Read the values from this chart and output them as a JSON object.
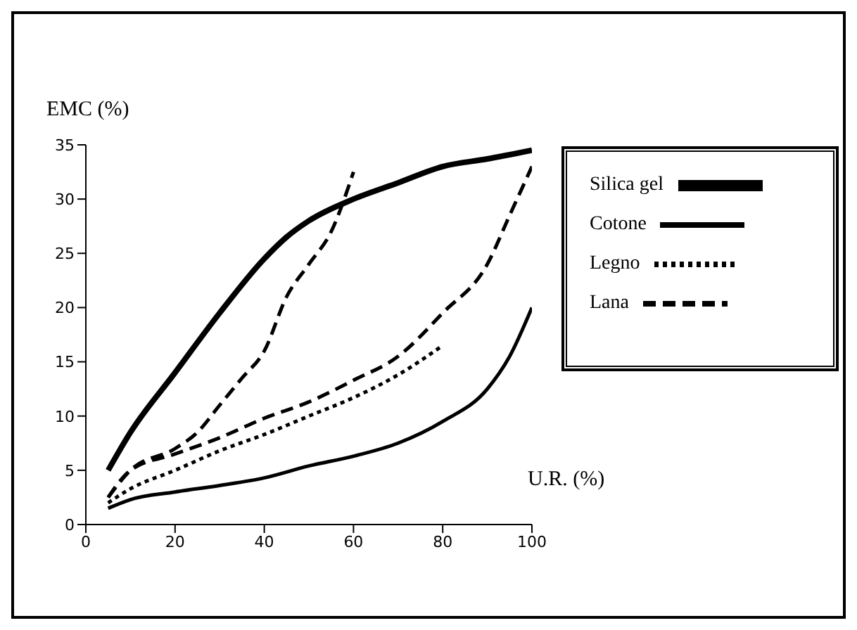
{
  "chart_data": {
    "type": "line",
    "xlabel": "U.R. (%)",
    "ylabel": "EMC (%)",
    "xlim": [
      0,
      100
    ],
    "xticks": [
      0,
      20,
      40,
      60,
      80,
      100
    ],
    "ylim": [
      0,
      35
    ],
    "yticks": [
      0,
      5,
      10,
      15,
      20,
      25,
      30,
      35
    ],
    "grid": false,
    "legend": "top right",
    "marker": "none",
    "series": [
      {
        "name": "Silica gel",
        "color": "#000000",
        "line_style": "solid",
        "x": [
          5,
          10,
          20,
          30,
          40,
          45,
          50,
          60,
          70,
          80,
          90,
          100
        ],
        "values": [
          5,
          8.5,
          14,
          19.5,
          24.5,
          26.5,
          28,
          30,
          31.5,
          33,
          33.7,
          34.5
        ]
      },
      {
        "color": "#000000",
        "line_style": "dashed",
        "x": [
          5,
          10,
          20,
          25,
          30,
          35,
          40,
          45,
          50,
          55,
          60
        ],
        "values": [
          2.5,
          5,
          7,
          8.5,
          11,
          13.5,
          16,
          21,
          24,
          27,
          32.5
        ]
      },
      {
        "name": "Cotone",
        "color": "#000000",
        "line_style": "solid",
        "x": [
          5,
          10,
          20,
          30,
          40,
          50,
          60,
          70,
          80,
          90,
          95,
          100
        ],
        "values": [
          1.5,
          2.3,
          3,
          3.6,
          4.3,
          5.4,
          6.3,
          7.5,
          9.5,
          12.5,
          15.5,
          20
        ]
      },
      {
        "name": "Legno",
        "color": "#000000",
        "line_style": "dotted",
        "x": [
          5,
          10,
          20,
          30,
          40,
          50,
          60,
          70,
          80
        ],
        "values": [
          2,
          3.3,
          5,
          6.8,
          8.3,
          10,
          11.7,
          13.8,
          16.5
        ]
      },
      {
        "name": "Lana",
        "color": "#000000",
        "line_style": "dashed",
        "x": [
          5,
          10,
          20,
          30,
          40,
          50,
          60,
          70,
          80,
          90,
          95,
          100
        ],
        "values": [
          2.5,
          5,
          6.5,
          8,
          9.8,
          11.3,
          13.3,
          15.5,
          19.5,
          24,
          28.5,
          33
        ]
      }
    ]
  }
}
